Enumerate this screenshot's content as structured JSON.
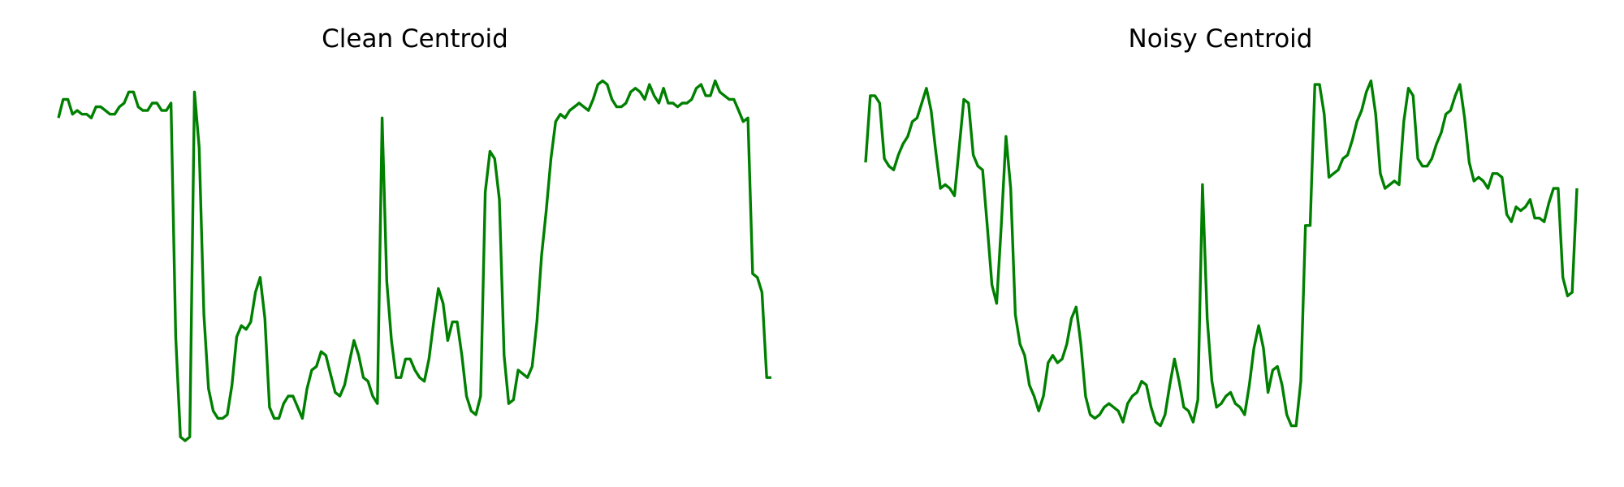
{
  "chart_data": [
    {
      "type": "line",
      "title": "Clean Centroid",
      "xlabel": "",
      "ylabel": "",
      "grid": false,
      "axes_visible": false,
      "ylim": [
        0,
        1
      ],
      "color": "#008000",
      "series": [
        {
          "values": [
            0.89,
            0.94,
            0.94,
            0.9,
            0.91,
            0.9,
            0.9,
            0.89,
            0.92,
            0.92,
            0.91,
            0.9,
            0.9,
            0.92,
            0.93,
            0.96,
            0.96,
            0.92,
            0.91,
            0.91,
            0.93,
            0.93,
            0.91,
            0.91,
            0.93,
            0.3,
            0.03,
            0.02,
            0.03,
            0.96,
            0.81,
            0.36,
            0.16,
            0.1,
            0.08,
            0.08,
            0.09,
            0.17,
            0.3,
            0.33,
            0.32,
            0.34,
            0.42,
            0.46,
            0.35,
            0.11,
            0.08,
            0.08,
            0.12,
            0.14,
            0.14,
            0.11,
            0.08,
            0.16,
            0.21,
            0.22,
            0.26,
            0.25,
            0.2,
            0.15,
            0.14,
            0.17,
            0.23,
            0.29,
            0.25,
            0.19,
            0.18,
            0.14,
            0.12,
            0.89,
            0.45,
            0.29,
            0.19,
            0.19,
            0.24,
            0.24,
            0.21,
            0.19,
            0.18,
            0.24,
            0.34,
            0.43,
            0.39,
            0.29,
            0.34,
            0.34,
            0.25,
            0.14,
            0.1,
            0.09,
            0.14,
            0.69,
            0.8,
            0.78,
            0.67,
            0.25,
            0.12,
            0.13,
            0.21,
            0.2,
            0.19,
            0.22,
            0.34,
            0.52,
            0.64,
            0.78,
            0.88,
            0.9,
            0.89,
            0.91,
            0.92,
            0.93,
            0.92,
            0.91,
            0.94,
            0.98,
            0.99,
            0.98,
            0.94,
            0.92,
            0.92,
            0.93,
            0.96,
            0.97,
            0.96,
            0.94,
            0.98,
            0.95,
            0.93,
            0.97,
            0.93,
            0.93,
            0.92,
            0.93,
            0.93,
            0.94,
            0.97,
            0.98,
            0.95,
            0.95,
            0.99,
            0.96,
            0.95,
            0.94,
            0.94,
            0.91,
            0.88,
            0.89,
            0.47,
            0.46,
            0.42,
            0.19,
            0.19
          ]
        }
      ]
    },
    {
      "type": "line",
      "title": "Noisy Centroid",
      "xlabel": "",
      "ylabel": "",
      "grid": false,
      "axes_visible": false,
      "ylim": [
        0,
        1
      ],
      "color": "#008000",
      "series": [
        {
          "values": [
            0.77,
            0.95,
            0.95,
            0.93,
            0.78,
            0.76,
            0.75,
            0.79,
            0.82,
            0.84,
            0.88,
            0.89,
            0.93,
            0.97,
            0.91,
            0.8,
            0.7,
            0.71,
            0.7,
            0.68,
            0.81,
            0.94,
            0.93,
            0.79,
            0.76,
            0.75,
            0.6,
            0.44,
            0.39,
            0.6,
            0.84,
            0.7,
            0.36,
            0.28,
            0.25,
            0.17,
            0.14,
            0.1,
            0.14,
            0.23,
            0.25,
            0.23,
            0.24,
            0.28,
            0.35,
            0.38,
            0.28,
            0.14,
            0.09,
            0.08,
            0.09,
            0.11,
            0.12,
            0.11,
            0.1,
            0.07,
            0.12,
            0.14,
            0.15,
            0.18,
            0.17,
            0.11,
            0.07,
            0.06,
            0.09,
            0.17,
            0.24,
            0.18,
            0.11,
            0.1,
            0.07,
            0.13,
            0.71,
            0.35,
            0.18,
            0.11,
            0.12,
            0.14,
            0.15,
            0.12,
            0.11,
            0.09,
            0.17,
            0.27,
            0.33,
            0.27,
            0.15,
            0.21,
            0.22,
            0.17,
            0.09,
            0.06,
            0.06,
            0.18,
            0.6,
            0.6,
            0.98,
            0.98,
            0.9,
            0.73,
            0.74,
            0.75,
            0.78,
            0.79,
            0.83,
            0.88,
            0.91,
            0.96,
            0.99,
            0.9,
            0.74,
            0.7,
            0.71,
            0.72,
            0.71,
            0.88,
            0.97,
            0.95,
            0.78,
            0.76,
            0.76,
            0.78,
            0.82,
            0.85,
            0.9,
            0.91,
            0.95,
            0.98,
            0.89,
            0.77,
            0.72,
            0.73,
            0.72,
            0.7,
            0.74,
            0.74,
            0.73,
            0.63,
            0.61,
            0.65,
            0.64,
            0.65,
            0.67,
            0.62,
            0.62,
            0.61,
            0.66,
            0.7,
            0.7,
            0.46,
            0.41,
            0.42,
            0.7
          ]
        }
      ]
    }
  ]
}
